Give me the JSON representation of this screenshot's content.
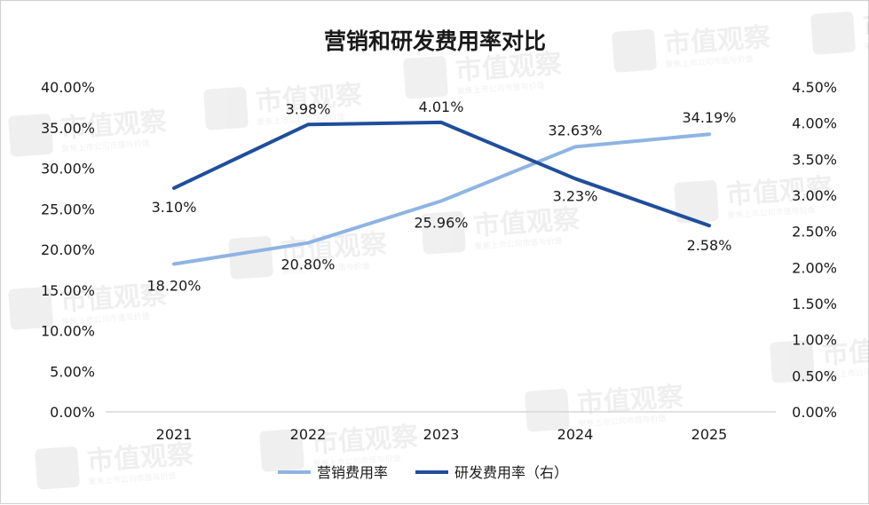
{
  "chart_data": {
    "type": "line",
    "title": "营销和研发费用率对比",
    "categories": [
      "2021",
      "2022",
      "2023",
      "2024",
      "2025"
    ],
    "y_left": {
      "ylim": [
        0,
        40
      ],
      "ticks": [
        "0.00%",
        "5.00%",
        "10.00%",
        "15.00%",
        "20.00%",
        "25.00%",
        "30.00%",
        "35.00%",
        "40.00%"
      ]
    },
    "y_right": {
      "ylim": [
        0,
        4.5
      ],
      "ticks": [
        "0.00%",
        "0.50%",
        "1.00%",
        "1.50%",
        "2.00%",
        "2.50%",
        "3.00%",
        "3.50%",
        "4.00%",
        "4.50%"
      ]
    },
    "series": [
      {
        "name": "营销费用率",
        "axis": "left",
        "color": "#8eb4e3",
        "values": [
          18.2,
          20.8,
          25.96,
          32.63,
          34.19
        ],
        "labels": [
          "18.20%",
          "20.80%",
          "25.96%",
          "32.63%",
          "34.19%"
        ]
      },
      {
        "name": "研发费用率（右）",
        "axis": "right",
        "color": "#1f4e9c",
        "values": [
          3.1,
          3.98,
          4.01,
          3.23,
          2.58
        ],
        "labels": [
          "3.10%",
          "3.98%",
          "4.01%",
          "3.23%",
          "2.58%"
        ]
      }
    ],
    "grid": false,
    "legend_position": "bottom"
  },
  "watermark": {
    "text": "市值观察",
    "subtext": "聚焦上市公司市值与价值"
  }
}
